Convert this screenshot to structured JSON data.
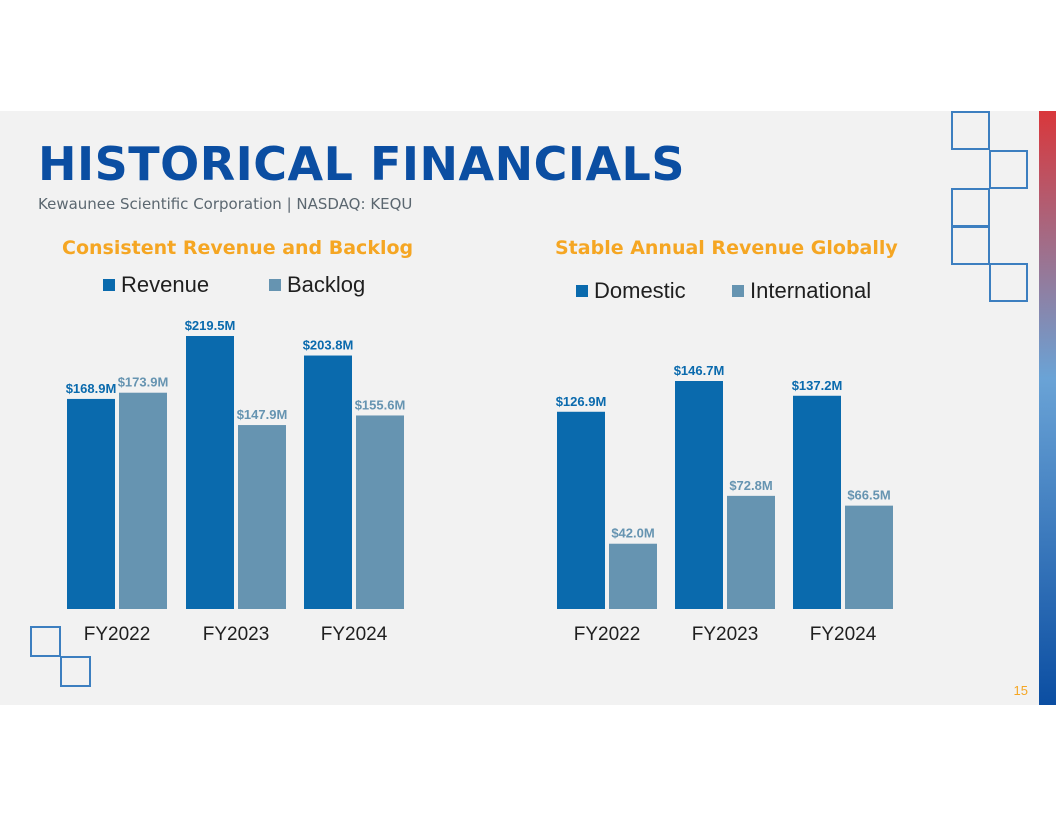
{
  "slide": {
    "title": "HISTORICAL FINANCIALS",
    "subtitle": "Kewaunee Scientific Corporation | NASDAQ: KEQU",
    "page_number": "15"
  },
  "colors": {
    "title": "#0b4ea2",
    "chart_title": "#f5a623",
    "primary_series": "#0a6aad",
    "secondary_series": "#6694b1",
    "outline_squares": "#3d7fc0",
    "page_number": "#f5a623",
    "accent_top": "#d9373b",
    "accent_mid": "#6aa3d6",
    "accent_bottom": "#0b4ea2"
  },
  "chart_data": [
    {
      "type": "bar",
      "title": "Consistent Revenue and Backlog",
      "categories": [
        "FY2022",
        "FY2023",
        "FY2024"
      ],
      "series": [
        {
          "name": "Revenue",
          "values": [
            168.9,
            219.5,
            203.8
          ],
          "labels": [
            "$168.9M",
            "$219.5M",
            "$203.8M"
          ]
        },
        {
          "name": "Backlog",
          "values": [
            173.9,
            147.9,
            155.6
          ],
          "labels": [
            "$173.9M",
            "$147.9M",
            "$155.6M"
          ]
        }
      ],
      "ylim": [
        0,
        219.5
      ],
      "grid": false,
      "legend": "top"
    },
    {
      "type": "bar",
      "title": "Stable Annual Revenue Globally",
      "categories": [
        "FY2022",
        "FY2023",
        "FY2024"
      ],
      "series": [
        {
          "name": "Domestic",
          "values": [
            126.9,
            146.7,
            137.2
          ],
          "labels": [
            "$126.9M",
            "$146.7M",
            "$137.2M"
          ]
        },
        {
          "name": "International",
          "values": [
            42.0,
            72.8,
            66.5
          ],
          "labels": [
            "$42.0M",
            "$72.8M",
            "$66.5M"
          ]
        }
      ],
      "ylim": [
        0,
        146.7
      ],
      "grid": false,
      "legend": "top"
    }
  ]
}
